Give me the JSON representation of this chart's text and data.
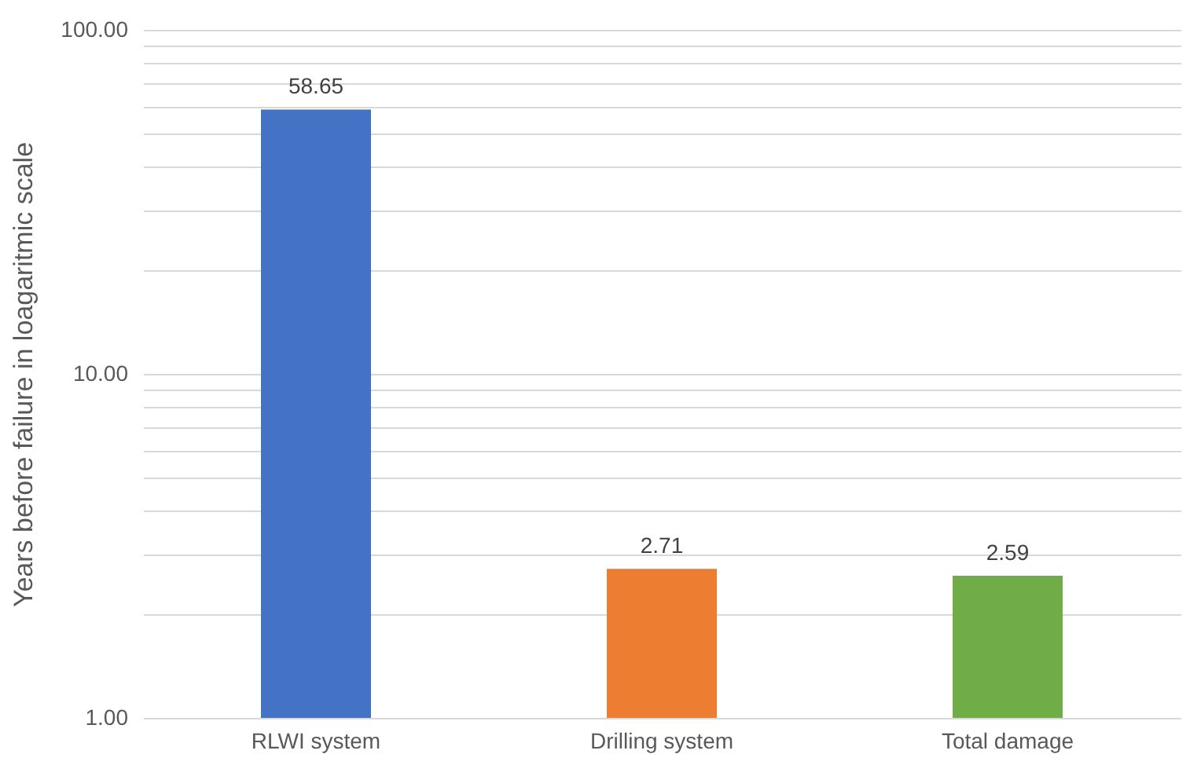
{
  "chart_data": {
    "type": "bar",
    "ylabel": "Years before failure in loagaritmic scale",
    "categories": [
      "RLWI system",
      "Drilling system",
      "Total damage"
    ],
    "values": [
      58.65,
      2.71,
      2.59
    ],
    "colors": [
      "#4472c4",
      "#ed7d31",
      "#70ad47"
    ],
    "log": true,
    "ylim": [
      1,
      100
    ],
    "yticks": [
      {
        "value": 1,
        "label": "1.00"
      },
      {
        "value": 2,
        "label": null
      },
      {
        "value": 3,
        "label": null
      },
      {
        "value": 4,
        "label": null
      },
      {
        "value": 5,
        "label": null
      },
      {
        "value": 6,
        "label": null
      },
      {
        "value": 7,
        "label": null
      },
      {
        "value": 8,
        "label": null
      },
      {
        "value": 9,
        "label": null
      },
      {
        "value": 10,
        "label": "10.00"
      },
      {
        "value": 20,
        "label": null
      },
      {
        "value": 30,
        "label": null
      },
      {
        "value": 40,
        "label": null
      },
      {
        "value": 50,
        "label": null
      },
      {
        "value": 60,
        "label": null
      },
      {
        "value": 70,
        "label": null
      },
      {
        "value": 80,
        "label": null
      },
      {
        "value": 90,
        "label": null
      },
      {
        "value": 100,
        "label": "100.00"
      }
    ],
    "grid": "y",
    "data_labels": true
  }
}
